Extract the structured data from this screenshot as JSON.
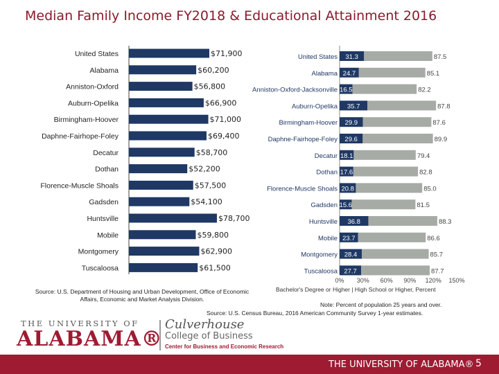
{
  "slide": {
    "title": "Median Family Income FY2018 & Educational Attainment 2016",
    "page_number": "5"
  },
  "chart_data": [
    {
      "type": "bar",
      "orientation": "horizontal",
      "categories": [
        "United States",
        "Alabama",
        "Anniston-Oxford",
        "Auburn-Opelika",
        "Birmingham-Hoover",
        "Daphne-Fairhope-Foley",
        "Decatur",
        "Dothan",
        "Florence-Muscle Shoals",
        "Gadsden",
        "Huntsville",
        "Mobile",
        "Montgomery",
        "Tuscaloosa"
      ],
      "values": [
        71900,
        60200,
        56800,
        66900,
        71000,
        69400,
        58700,
        52200,
        57500,
        54100,
        78700,
        59800,
        62900,
        61500
      ],
      "value_labels": [
        "$71,900",
        "$60,200",
        "$56,800",
        "$66,900",
        "$71,000",
        "$69,400",
        "$58,700",
        "$52,200",
        "$57,500",
        "$54,100",
        "$78,700",
        "$59,800",
        "$62,900",
        "$61,500"
      ],
      "bar_color": "#1f3864",
      "source": "Source:  U.S. Department of Housing and Urban Development, Office of Economic Affairs, Economic and Market Analysis Division."
    },
    {
      "type": "bar",
      "orientation": "horizontal",
      "stacked": true,
      "categories": [
        "United States",
        "Alabama",
        "Anniston-Oxford-Jacksonville",
        "Auburn-Opelika",
        "Birmingham-Hoover",
        "Daphne-Fairhope-Foley",
        "Decatur",
        "Dothan",
        "Florence-Muscle Shoals",
        "Gadsden",
        "Huntsville",
        "Mobile",
        "Montgomery",
        "Tuscaloosa"
      ],
      "series": [
        {
          "name": "Bachelor's Degree or Higher",
          "values": [
            31.3,
            24.7,
            16.5,
            35.7,
            29.9,
            29.6,
            18.1,
            17.6,
            20.8,
            15.6,
            36.8,
            23.7,
            28.4,
            27.7
          ],
          "color": "#1f3864"
        },
        {
          "name": "High School or Higher, Percent",
          "values": [
            87.5,
            85.1,
            82.2,
            87.8,
            87.6,
            89.9,
            79.4,
            82.8,
            85.0,
            81.5,
            88.3,
            86.6,
            85.7,
            87.7
          ],
          "color": "#a6aba6"
        }
      ],
      "value_labels": {
        "bachelors": [
          "31.3",
          "24.7",
          "16.5",
          "35.7",
          "29.9",
          "29.6",
          "18.1",
          "17.6",
          "20.8",
          "15.6",
          "36.8",
          "23.7",
          "28.4",
          "27.7"
        ],
        "high_school": [
          "87.5",
          "85.1",
          "82.2",
          "87.8",
          "87.6",
          "89.9",
          "79.4",
          "82.8",
          "85.0",
          "81.5",
          "88.3",
          "86.6",
          "85.7",
          "87.7"
        ]
      },
      "xlim": [
        0,
        150
      ],
      "x_ticks": [
        0,
        30,
        60,
        90,
        120,
        150
      ],
      "x_tick_labels": [
        "0%",
        "30%",
        "60%",
        "90%",
        "120%",
        "150%"
      ],
      "legend_text": "Bachelor's Degree or Higher  |  High School or Higher, Percent",
      "legend_placement": "bottom",
      "note": "Note: Percent of population 25 years and over.",
      "source": "Source:  U.S. Census Bureau, 2016 American Community Survey 1-year estimates."
    }
  ],
  "logo": {
    "line1": "THE UNIVERSITY OF",
    "line2": "ALABAMA®",
    "college1": "Culverhouse",
    "college2": "College of Business",
    "college3": "Center for Business and Economic Research"
  },
  "footer": {
    "text": "THE UNIVERSITY OF ALABAMA®"
  }
}
